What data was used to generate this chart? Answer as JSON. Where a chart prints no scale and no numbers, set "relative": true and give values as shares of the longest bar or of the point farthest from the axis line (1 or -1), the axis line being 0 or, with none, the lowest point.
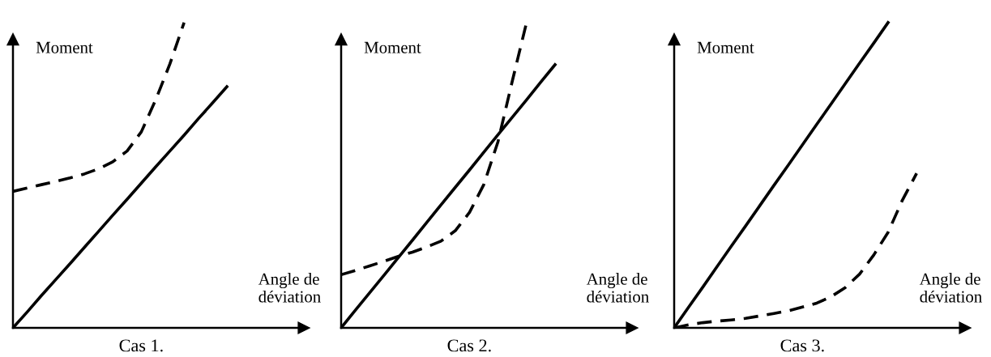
{
  "chart_data": [
    {
      "type": "line",
      "title": "Cas 1.",
      "xlabel": "Angle de\ndéviation",
      "ylabel": "Moment",
      "relative": true,
      "legend": false,
      "marker": "none",
      "categories": [
        null,
        null,
        null,
        null,
        null,
        null,
        null,
        null,
        null,
        null,
        null,
        null,
        null,
        null,
        null,
        null,
        null,
        null,
        null,
        null,
        null
      ],
      "series": [
        {
          "color": "#000000",
          "line_style": "solid",
          "values": [
            0,
            0.052,
            0.106,
            0.158,
            0.21,
            0.263,
            0.316,
            0.369,
            0.421,
            0.474,
            0.527,
            0.579,
            0.631,
            0.685,
            0.737,
            0.79,
            null,
            null,
            null,
            null,
            null
          ]
        },
        {
          "color": "#000000",
          "line_style": "dashed",
          "values": [
            0.447,
            0.458,
            0.469,
            0.48,
            0.491,
            0.504,
            0.521,
            0.544,
            0.579,
            0.642,
            0.746,
            0.864,
            1.0,
            null,
            null,
            null,
            null,
            null,
            null,
            null,
            null
          ]
        }
      ]
    },
    {
      "type": "line",
      "title": "Cas 2.",
      "xlabel": "Angle de\ndéviation",
      "ylabel": "Moment",
      "relative": true,
      "legend": false,
      "marker": "none",
      "categories": [
        null,
        null,
        null,
        null,
        null,
        null,
        null,
        null,
        null,
        null,
        null,
        null,
        null,
        null,
        null,
        null,
        null,
        null,
        null,
        null,
        null
      ],
      "series": [
        {
          "color": "#000000",
          "line_style": "solid",
          "values": [
            0,
            0.058,
            0.115,
            0.172,
            0.23,
            0.287,
            0.345,
            0.403,
            0.46,
            0.517,
            0.575,
            0.633,
            0.69,
            0.747,
            0.805,
            0.862,
            null,
            null,
            null,
            null,
            null
          ]
        },
        {
          "color": "#000000",
          "line_style": "dashed",
          "values": [
            0.174,
            0.188,
            0.203,
            0.218,
            0.234,
            0.248,
            0.265,
            0.284,
            0.318,
            0.378,
            0.469,
            0.61,
            0.808,
            1.0,
            null,
            null,
            null,
            null,
            null,
            null,
            null
          ]
        }
      ]
    },
    {
      "type": "line",
      "title": "Cas 3.",
      "xlabel": "Angle de\ndéviation",
      "ylabel": "Moment",
      "relative": true,
      "legend": false,
      "marker": "none",
      "categories": [
        null,
        null,
        null,
        null,
        null,
        null,
        null,
        null,
        null,
        null,
        null,
        null,
        null,
        null,
        null,
        null,
        null,
        null,
        null,
        null,
        null
      ],
      "series": [
        {
          "color": "#000000",
          "line_style": "solid",
          "values": [
            0,
            0.067,
            0.133,
            0.2,
            0.267,
            0.333,
            0.4,
            0.467,
            0.533,
            0.6,
            0.667,
            0.733,
            0.8,
            0.867,
            0.933,
            1.0,
            null,
            null,
            null,
            null,
            null
          ]
        },
        {
          "color": "#000000",
          "line_style": "dashed",
          "values": [
            0,
            0.01,
            0.017,
            0.022,
            0.026,
            0.031,
            0.039,
            0.047,
            0.056,
            0.068,
            0.081,
            0.102,
            0.132,
            0.176,
            0.239,
            0.313,
            0.418,
            0.506,
            null,
            null,
            null
          ]
        }
      ]
    }
  ]
}
